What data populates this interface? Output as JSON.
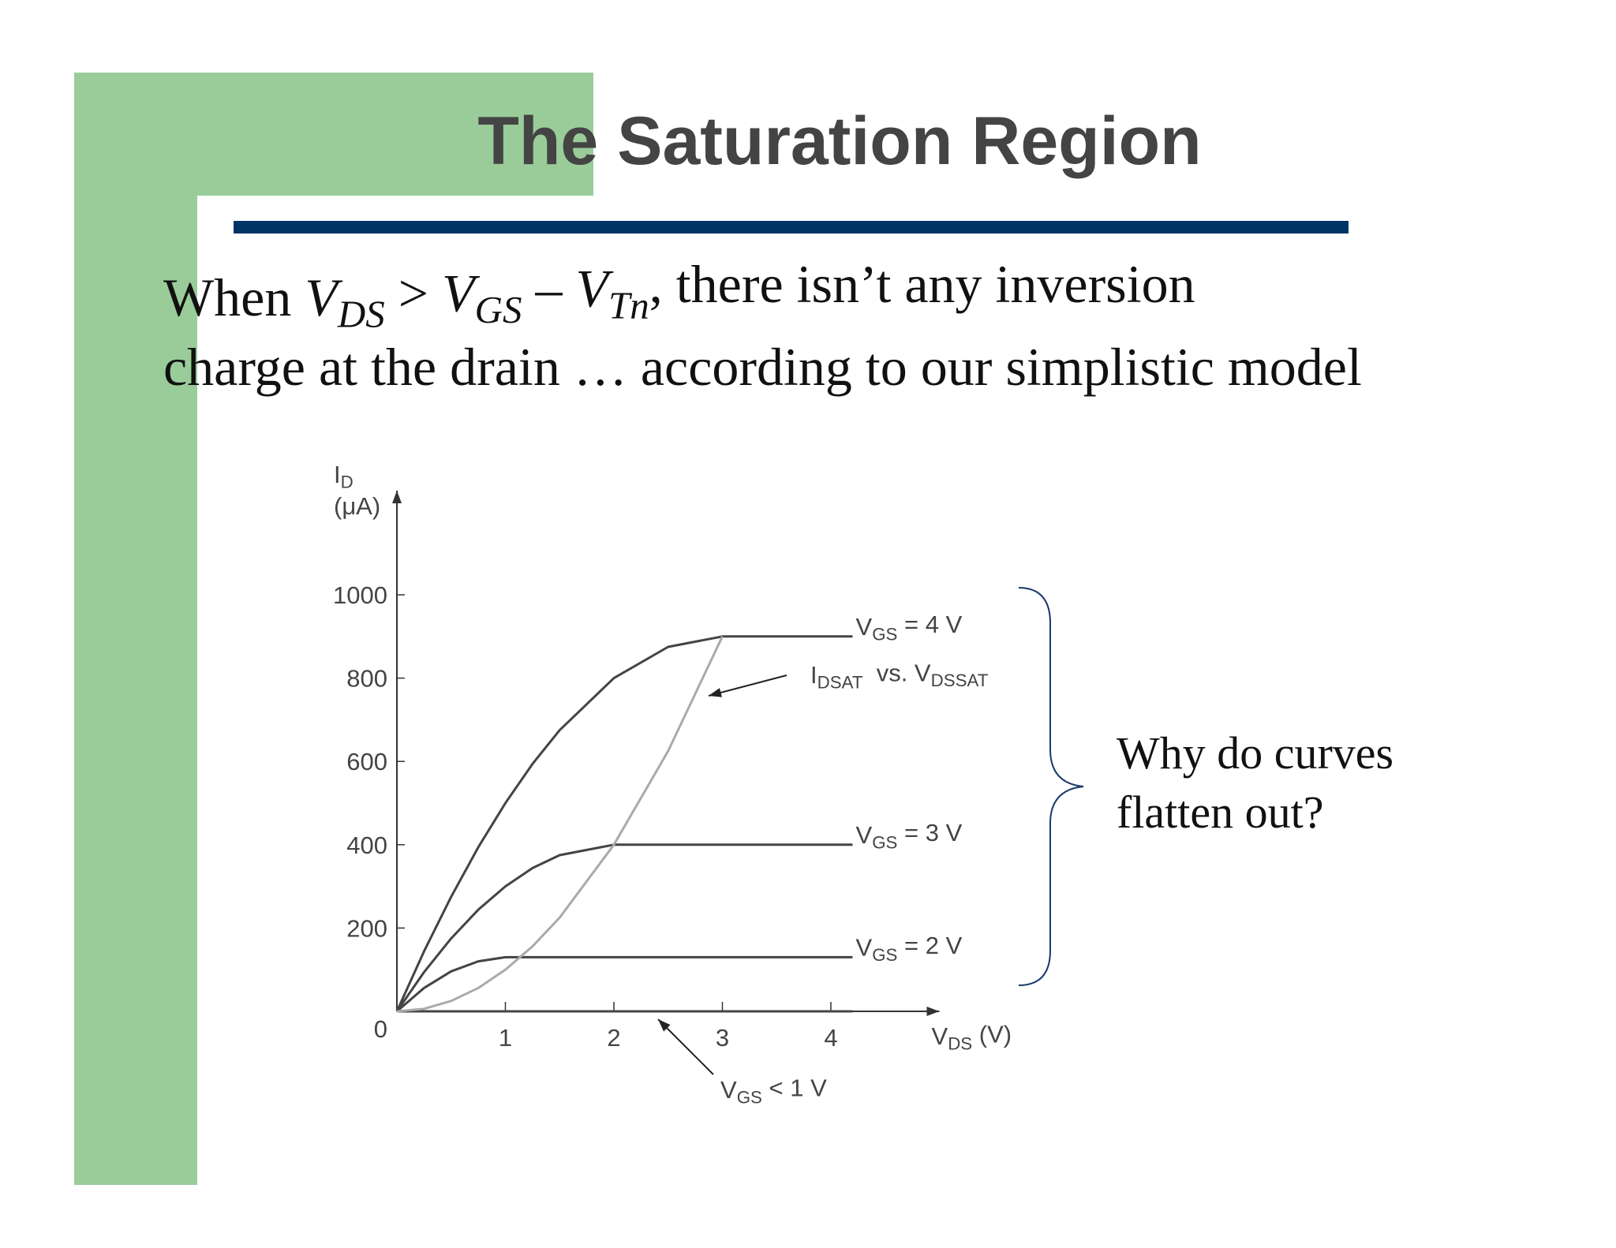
{
  "header": {
    "title": "The Saturation Region"
  },
  "body": {
    "line1": [
      {
        "text": "When "
      },
      {
        "text": "V",
        "style": "italic"
      },
      {
        "text": "DS",
        "style": "sub-italic"
      },
      {
        "text": " > "
      },
      {
        "text": "V",
        "style": "italic"
      },
      {
        "text": "GS",
        "style": "sub-italic"
      },
      {
        "text": " – "
      },
      {
        "text": "V",
        "style": "italic"
      },
      {
        "text": "Tn",
        "style": "sub-italic"
      },
      {
        "text": ", there isn’t any inversion"
      }
    ],
    "line2": "charge at the drain … according to our simplistic model"
  },
  "side_note": [
    "Why do curves",
    "flatten out?"
  ],
  "chart_data": {
    "type": "line",
    "y_label": [
      [
        {
          "text": "I"
        },
        {
          "text": "D",
          "style": "sub"
        }
      ],
      [
        {
          "text": "(μA)"
        }
      ]
    ],
    "x_label": [
      {
        "text": "V"
      },
      {
        "text": "DS",
        "style": "sub"
      },
      {
        "text": " (V)"
      }
    ],
    "x": [
      0,
      0.25,
      0.5,
      0.75,
      1,
      1.25,
      1.5,
      2,
      2.5,
      3,
      3.5,
      4.2
    ],
    "xlim": [
      0,
      5
    ],
    "xticks": [
      1,
      2,
      3,
      4
    ],
    "ylim": [
      0,
      1250
    ],
    "yticks": [
      0,
      200,
      400,
      600,
      800,
      1000
    ],
    "grid": false,
    "series": [
      {
        "label": [
          {
            "text": "V"
          },
          {
            "text": "GS",
            "style": "sub"
          },
          {
            "text": " = 4 V"
          }
        ],
        "color": "#444444",
        "values": [
          0,
          144,
          275,
          394,
          500,
          594,
          675,
          800,
          875,
          900,
          900,
          900
        ]
      },
      {
        "label": [
          {
            "text": "V"
          },
          {
            "text": "GS",
            "style": "sub"
          },
          {
            "text": " = 3 V"
          }
        ],
        "color": "#444444",
        "values": [
          0,
          94,
          175,
          244,
          300,
          344,
          375,
          400,
          400,
          400,
          400,
          400
        ]
      },
      {
        "label": [
          {
            "text": "V"
          },
          {
            "text": "GS",
            "style": "sub"
          },
          {
            "text": " = 2 V"
          }
        ],
        "color": "#444444",
        "values": [
          0,
          56,
          96,
          120,
          130,
          130,
          130,
          130,
          130,
          130,
          130,
          130
        ]
      },
      {
        "color": "#444444",
        "values": [
          0,
          0,
          0,
          0,
          0,
          0,
          0,
          0,
          0,
          0,
          0,
          0
        ]
      },
      {
        "color": "#aaaaaa",
        "values": [
          0,
          6,
          25,
          56,
          100,
          156,
          225,
          400,
          625,
          900,
          null,
          null
        ]
      }
    ],
    "annotations": [
      [
        {
          "text": "I"
        },
        {
          "text": "DSAT",
          "style": "sub"
        },
        {
          "text": "  vs. V"
        },
        {
          "text": "DSSAT",
          "style": "sub"
        }
      ],
      [
        {
          "text": "V"
        },
        {
          "text": "GS",
          "style": "sub"
        },
        {
          "text": " < 1 V"
        }
      ]
    ]
  }
}
